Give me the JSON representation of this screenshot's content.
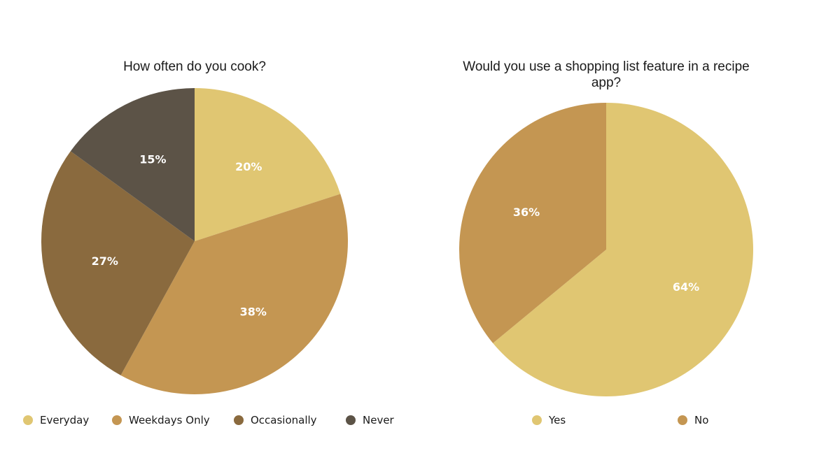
{
  "chart_data": [
    {
      "type": "pie",
      "title": "How often do you cook?",
      "categories": [
        "Everyday",
        "Weekdays Only",
        "Occasionally",
        "Never"
      ],
      "values": [
        20,
        38,
        27,
        15
      ],
      "labels": [
        "20%",
        "38%",
        "27%",
        "15%"
      ],
      "colors": [
        "#E0C672",
        "#C49652",
        "#8A6A3E",
        "#5C5347"
      ],
      "legend_position": "bottom"
    },
    {
      "type": "pie",
      "title": "Would you use a shopping list feature in a recipe app?",
      "categories": [
        "Yes",
        "No"
      ],
      "values": [
        64,
        36
      ],
      "labels": [
        "64%",
        "36%"
      ],
      "colors": [
        "#E0C672",
        "#C49652"
      ],
      "legend_position": "bottom"
    }
  ]
}
